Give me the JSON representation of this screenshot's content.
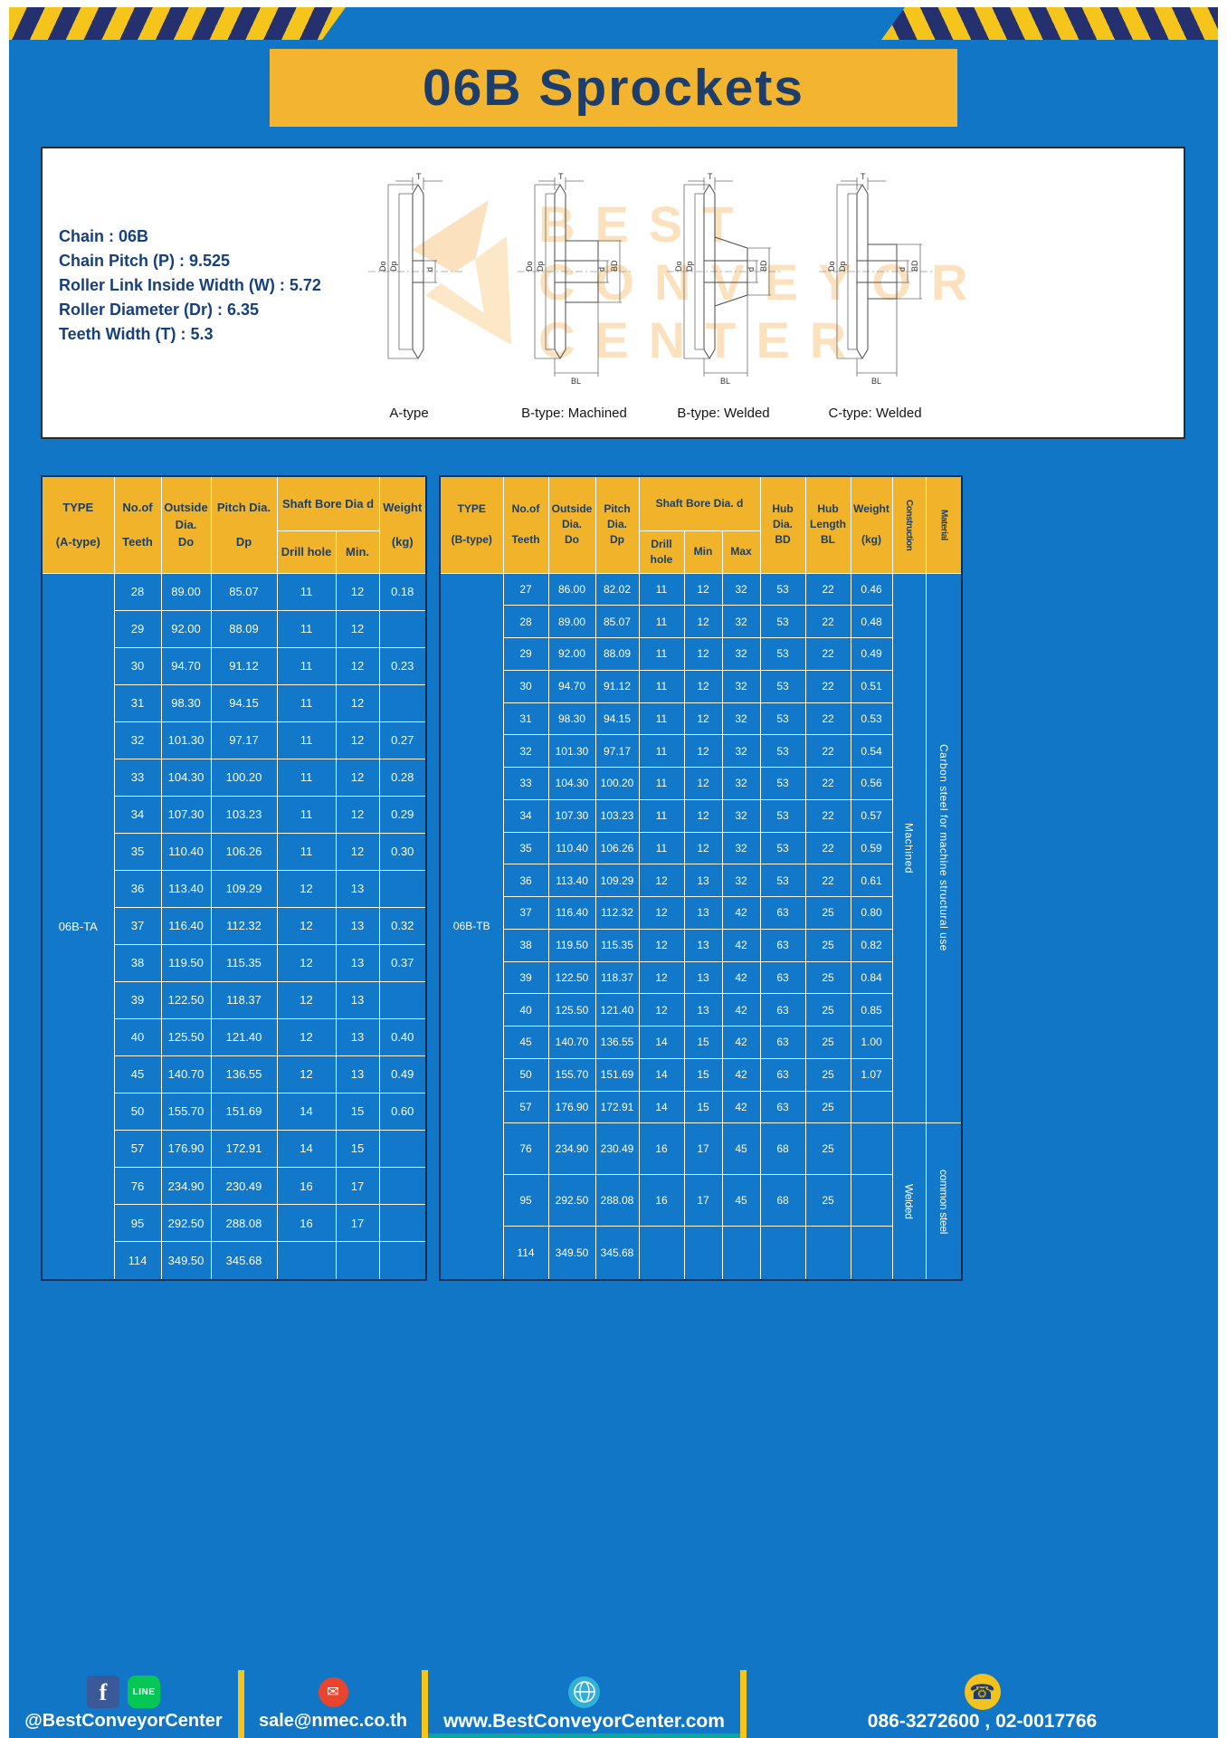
{
  "page": {
    "title": "06B Sprockets"
  },
  "specs": {
    "lines": [
      "Chain : 06B",
      "Chain Pitch (P) : 9.525",
      "Roller Link Inside Width (W) : 5.72",
      "Roller Diameter (Dr) : 6.35",
      "Teeth Width (T) : 5.3"
    ]
  },
  "watermark": {
    "lines": [
      "BEST",
      "CONVEYOR",
      "CENTER"
    ]
  },
  "diagrams": {
    "dims": {
      "t": "T",
      "do": "Do",
      "dp": "Dp",
      "d": "d",
      "bd": "BD",
      "bl": "BL"
    },
    "labels": [
      "A-type",
      "B-type: Machined",
      "B-type: Welded",
      "C-type: Welded"
    ]
  },
  "table_a": {
    "type_label": "06B-TA",
    "headers": {
      "type": "TYPE\n\n(A-type)",
      "teeth": "No.of\n\nTeeth",
      "outside": "Outside\nDia.\nDo",
      "pitch": "Pitch Dia.\n\nDp",
      "shaft": "Shaft Bore Dia d",
      "drill": "Drill hole",
      "min": "Min.",
      "weight": "Weight\n\n(kg)"
    },
    "rows": [
      [
        "28",
        "89.00",
        "85.07",
        "11",
        "12",
        "0.18"
      ],
      [
        "29",
        "92.00",
        "88.09",
        "11",
        "12",
        ""
      ],
      [
        "30",
        "94.70",
        "91.12",
        "11",
        "12",
        "0.23"
      ],
      [
        "31",
        "98.30",
        "94.15",
        "11",
        "12",
        ""
      ],
      [
        "32",
        "101.30",
        "97.17",
        "11",
        "12",
        "0.27"
      ],
      [
        "33",
        "104.30",
        "100.20",
        "11",
        "12",
        "0.28"
      ],
      [
        "34",
        "107.30",
        "103.23",
        "11",
        "12",
        "0.29"
      ],
      [
        "35",
        "110.40",
        "106.26",
        "11",
        "12",
        "0.30"
      ],
      [
        "36",
        "113.40",
        "109.29",
        "12",
        "13",
        ""
      ],
      [
        "37",
        "116.40",
        "112.32",
        "12",
        "13",
        "0.32"
      ],
      [
        "38",
        "119.50",
        "115.35",
        "12",
        "13",
        "0.37"
      ],
      [
        "39",
        "122.50",
        "118.37",
        "12",
        "13",
        ""
      ],
      [
        "40",
        "125.50",
        "121.40",
        "12",
        "13",
        "0.40"
      ],
      [
        "45",
        "140.70",
        "136.55",
        "12",
        "13",
        "0.49"
      ],
      [
        "50",
        "155.70",
        "151.69",
        "14",
        "15",
        "0.60"
      ],
      [
        "57",
        "176.90",
        "172.91",
        "14",
        "15",
        ""
      ],
      [
        "76",
        "234.90",
        "230.49",
        "16",
        "17",
        ""
      ],
      [
        "95",
        "292.50",
        "288.08",
        "16",
        "17",
        ""
      ],
      [
        "114",
        "349.50",
        "345.68",
        "",
        "",
        ""
      ]
    ]
  },
  "table_b": {
    "type_label": "06B-TB",
    "headers": {
      "type": "TYPE\n\n(B-type)",
      "teeth": "No.of\n\nTeeth",
      "outside": "Outside\nDia.\nDo",
      "pitch": "Pitch\nDia.\nDp",
      "shaft": "Shaft Bore Dia. d",
      "drill": "Drill hole",
      "min": "Min",
      "max": "Max",
      "hub_dia": "Hub\nDia.\nBD",
      "hub_len": "Hub\nLength\nBL",
      "weight": "Weight\n\n(kg)",
      "construction": "Construction",
      "material": "Material"
    },
    "rows": [
      [
        "27",
        "86.00",
        "82.02",
        "11",
        "12",
        "32",
        "53",
        "22",
        "0.46"
      ],
      [
        "28",
        "89.00",
        "85.07",
        "11",
        "12",
        "32",
        "53",
        "22",
        "0.48"
      ],
      [
        "29",
        "92.00",
        "88.09",
        "11",
        "12",
        "32",
        "53",
        "22",
        "0.49"
      ],
      [
        "30",
        "94.70",
        "91.12",
        "11",
        "12",
        "32",
        "53",
        "22",
        "0.51"
      ],
      [
        "31",
        "98.30",
        "94.15",
        "11",
        "12",
        "32",
        "53",
        "22",
        "0.53"
      ],
      [
        "32",
        "101.30",
        "97.17",
        "11",
        "12",
        "32",
        "53",
        "22",
        "0.54"
      ],
      [
        "33",
        "104.30",
        "100.20",
        "11",
        "12",
        "32",
        "53",
        "22",
        "0.56"
      ],
      [
        "34",
        "107.30",
        "103.23",
        "11",
        "12",
        "32",
        "53",
        "22",
        "0.57"
      ],
      [
        "35",
        "110.40",
        "106.26",
        "11",
        "12",
        "32",
        "53",
        "22",
        "0.59"
      ],
      [
        "36",
        "113.40",
        "109.29",
        "12",
        "13",
        "32",
        "53",
        "22",
        "0.61"
      ],
      [
        "37",
        "116.40",
        "112.32",
        "12",
        "13",
        "42",
        "63",
        "25",
        "0.80"
      ],
      [
        "38",
        "119.50",
        "115.35",
        "12",
        "13",
        "42",
        "63",
        "25",
        "0.82"
      ],
      [
        "39",
        "122.50",
        "118.37",
        "12",
        "13",
        "42",
        "63",
        "25",
        "0.84"
      ],
      [
        "40",
        "125.50",
        "121.40",
        "12",
        "13",
        "42",
        "63",
        "25",
        "0.85"
      ],
      [
        "45",
        "140.70",
        "136.55",
        "14",
        "15",
        "42",
        "63",
        "25",
        "1.00"
      ],
      [
        "50",
        "155.70",
        "151.69",
        "14",
        "15",
        "42",
        "63",
        "25",
        "1.07"
      ],
      [
        "57",
        "176.90",
        "172.91",
        "14",
        "15",
        "42",
        "63",
        "25",
        ""
      ],
      [
        "76",
        "234.90",
        "230.49",
        "16",
        "17",
        "45",
        "68",
        "25",
        ""
      ],
      [
        "95",
        "292.50",
        "288.08",
        "16",
        "17",
        "45",
        "68",
        "25",
        ""
      ],
      [
        "114",
        "349.50",
        "345.68",
        "",
        "",
        "",
        "",
        "",
        ""
      ]
    ],
    "construction": [
      {
        "label": "Machined",
        "rows": 17
      },
      {
        "label": "Welded",
        "rows": 3
      }
    ],
    "material": [
      {
        "label": "Carbon steel for machine structural use",
        "rows": 17
      },
      {
        "label": "common steel",
        "rows": 3
      }
    ]
  },
  "footer": {
    "social_label": "@BestConveyorCenter",
    "email": "sale@nmec.co.th",
    "website": "www.BestConveyorCenter.com",
    "phone": "086-3272600 , 02-0017766",
    "icons": {
      "facebook": "f",
      "line": "LINE",
      "email": "✉",
      "phone": "☎"
    }
  }
}
